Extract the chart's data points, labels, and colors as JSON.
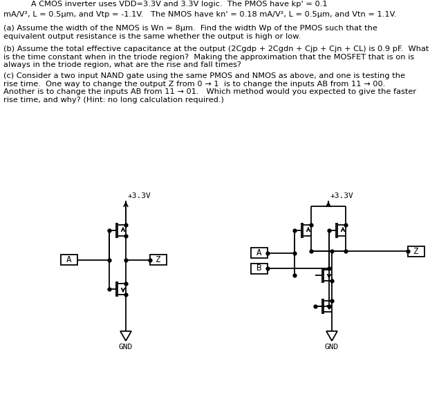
{
  "bg_color": "#ffffff",
  "text_color": "#000000",
  "line_color": "#000000",
  "header1": "           A CMOS inverter uses VDD=3.3V and 3.3V logic.  The PMOS have kp' = 0.1",
  "header2": "mA/V², L = 0.5μm, and Vtp = -1.1V.   The NMOS have kn' = 0.18 mA/V², L = 0.5μm, and Vtn = 1.1V.",
  "part_a": "(a) Assume the width of the NMOS is Wn = 8μm.  Find the width Wp of the PMOS such that the\nequivalent output resistance is the same whether the output is high or low.",
  "part_b": "(b) Assume the total effective capacitance at the output (2Cgdp + 2Cgdn + Cjp + Cjn + CL) is 0.9 pF.  What\nis the time constant when in the triode region?  Making the approximation that the MOSFET that is on is\nalways in the triode region, what are the rise and fall times?",
  "part_c": "(c) Consider a two input NAND gate using the same PMOS and NMOS as above, and one is testing the\nrise time.  One way to change the output Z from 0 → 1  is to change the inputs AB from 11 → 00.\nAnother is to change the inputs AB from 11 → 01.   Which method would you expected to give the faster\nrise time, and why? (Hint: no long calculation required.)"
}
